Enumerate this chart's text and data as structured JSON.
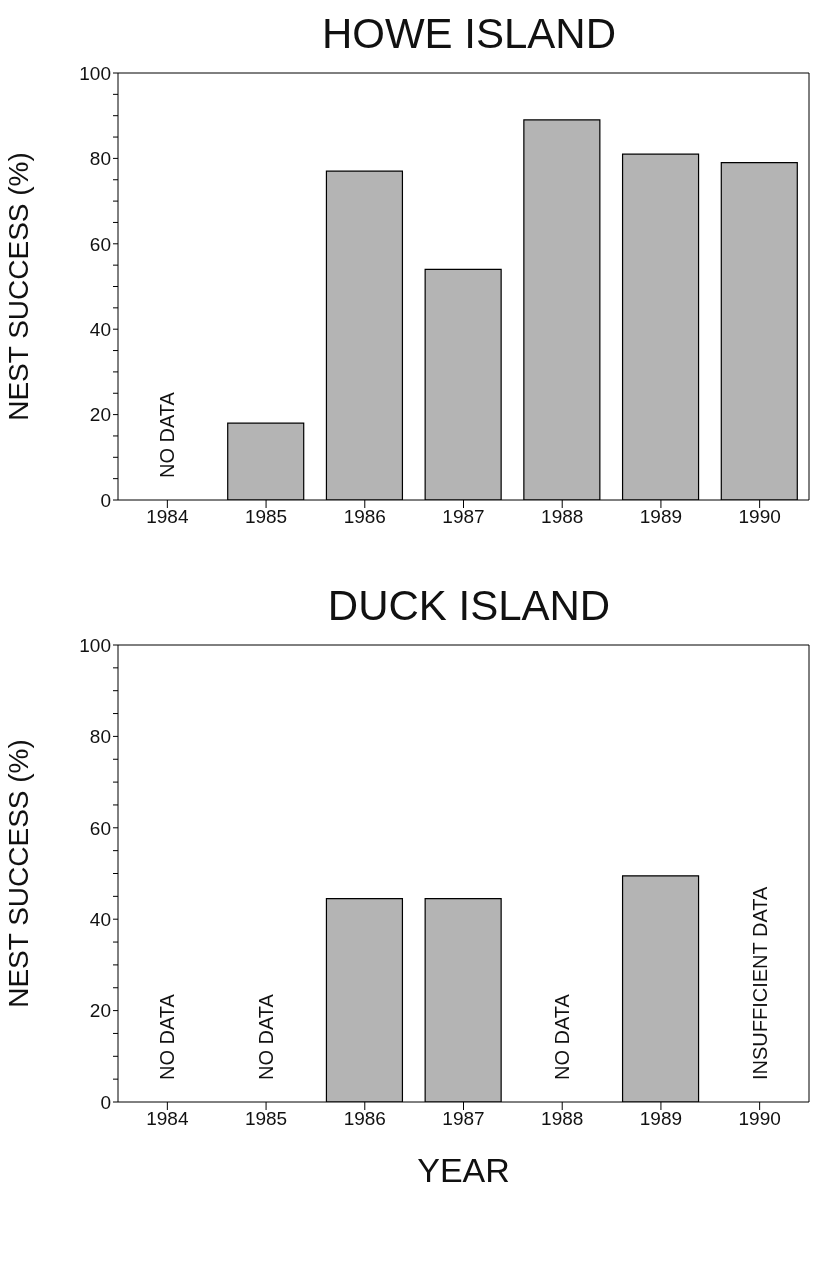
{
  "chart_data": [
    {
      "type": "bar",
      "title": "HOWE ISLAND",
      "ylabel": "NEST SUCCESS (%)",
      "categories": [
        "1984",
        "1985",
        "1986",
        "1987",
        "1988",
        "1989",
        "1990"
      ],
      "values": [
        null,
        18,
        77,
        54,
        89,
        81,
        79
      ],
      "color": "#b4b4b4",
      "ylim": [
        0,
        100
      ],
      "yticks": [
        0,
        {
          "value": 5,
          "label": null
        },
        {
          "value": 10,
          "label": null
        },
        {
          "value": 15,
          "label": null
        },
        20,
        {
          "value": 25,
          "label": null
        },
        {
          "value": 30,
          "label": null
        },
        {
          "value": 35,
          "label": null
        },
        40,
        {
          "value": 45,
          "label": null
        },
        {
          "value": 50,
          "label": null
        },
        {
          "value": 55,
          "label": null
        },
        60,
        {
          "value": 65,
          "label": null
        },
        {
          "value": 70,
          "label": null
        },
        {
          "value": 75,
          "label": null
        },
        80,
        {
          "value": 85,
          "label": null
        },
        {
          "value": 90,
          "label": null
        },
        {
          "value": 95,
          "label": null
        },
        100
      ],
      "grid": false,
      "legend": false,
      "annotations": [
        "NO DATA"
      ]
    },
    {
      "type": "bar",
      "title": "DUCK ISLAND",
      "xlabel": "YEAR",
      "ylabel": "NEST SUCCESS (%)",
      "categories": [
        "1984",
        "1985",
        "1986",
        "1987",
        "1988",
        "1989",
        "1990"
      ],
      "values": [
        null,
        null,
        44.5,
        44.5,
        null,
        49.5,
        null
      ],
      "color": "#b4b4b4",
      "ylim": [
        0,
        100
      ],
      "yticks": [
        0,
        {
          "value": 5,
          "label": null
        },
        {
          "value": 10,
          "label": null
        },
        {
          "value": 15,
          "label": null
        },
        20,
        {
          "value": 25,
          "label": null
        },
        {
          "value": 30,
          "label": null
        },
        {
          "value": 35,
          "label": null
        },
        40,
        {
          "value": 45,
          "label": null
        },
        {
          "value": 50,
          "label": null
        },
        {
          "value": 55,
          "label": null
        },
        60,
        {
          "value": 65,
          "label": null
        },
        {
          "value": 70,
          "label": null
        },
        {
          "value": 75,
          "label": null
        },
        80,
        {
          "value": 85,
          "label": null
        },
        {
          "value": 90,
          "label": null
        },
        {
          "value": 95,
          "label": null
        },
        100
      ],
      "grid": false,
      "legend": false,
      "annotations": [
        "NO DATA",
        "NO DATA",
        "NO DATA",
        "INSUFFICIENT DATA"
      ]
    }
  ]
}
